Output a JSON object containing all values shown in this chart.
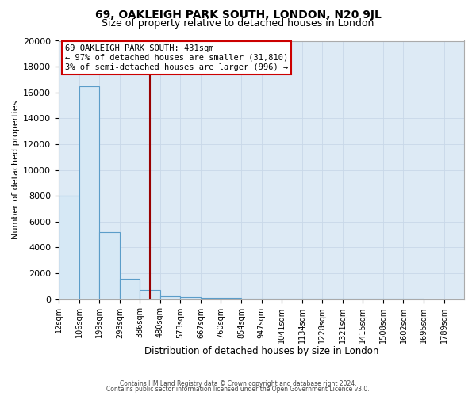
{
  "title1": "69, OAKLEIGH PARK SOUTH, LONDON, N20 9JL",
  "title2": "Size of property relative to detached houses in London",
  "xlabel": "Distribution of detached houses by size in London",
  "ylabel": "Number of detached properties",
  "annotation_line1": "69 OAKLEIGH PARK SOUTH: 431sqm",
  "annotation_line2": "← 97% of detached houses are smaller (31,810)",
  "annotation_line3": "3% of semi-detached houses are larger (996) →",
  "footer1": "Contains HM Land Registry data © Crown copyright and database right 2024.",
  "footer2": "Contains public sector information licensed under the Open Government Licence v3.0.",
  "bin_edges": [
    12,
    106,
    199,
    293,
    386,
    480,
    573,
    667,
    760,
    854,
    947,
    1041,
    1134,
    1228,
    1321,
    1415,
    1508,
    1602,
    1695,
    1789,
    1882
  ],
  "bin_counts": [
    8000,
    16500,
    5200,
    1600,
    700,
    200,
    130,
    100,
    100,
    50,
    40,
    30,
    25,
    20,
    15,
    12,
    10,
    8,
    6,
    5
  ],
  "bar_facecolor": "#d6e8f5",
  "bar_edgecolor": "#5b9dc9",
  "vline_color": "#990000",
  "vline_x": 431,
  "ylim": [
    0,
    20000
  ],
  "yticks": [
    0,
    2000,
    4000,
    6000,
    8000,
    10000,
    12000,
    14000,
    16000,
    18000,
    20000
  ],
  "grid_color": "#c8d8e8",
  "bg_color": "#ddeaf5",
  "box_edgecolor": "#cc0000",
  "title1_fontsize": 10,
  "title2_fontsize": 9,
  "annotation_fontsize": 7.5
}
